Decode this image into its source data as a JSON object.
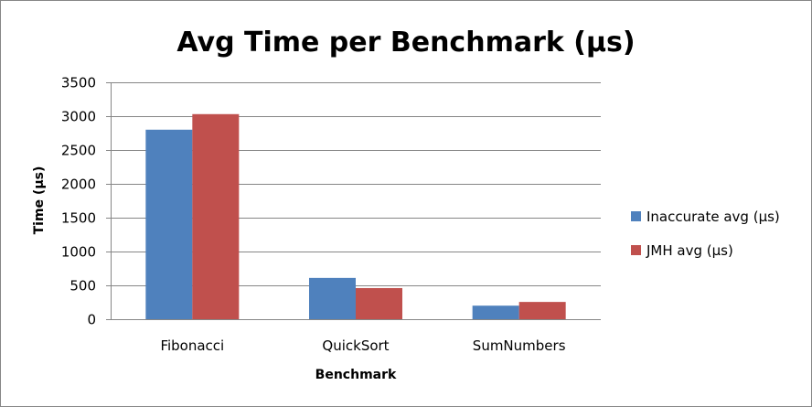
{
  "chart_data": {
    "type": "bar",
    "title": "Avg Time per Benchmark (µs)",
    "xlabel": "Benchmark",
    "ylabel": "Time (µs)",
    "categories": [
      "Fibonacci",
      "QuickSort",
      "SumNumbers"
    ],
    "series": [
      {
        "name": "Inaccurate avg (µs)",
        "color": "#4F81BD",
        "values": [
          2800,
          610,
          200
        ]
      },
      {
        "name": "JMH avg (µs)",
        "color": "#C0504D",
        "values": [
          3030,
          460,
          255
        ]
      }
    ],
    "ylim": [
      0,
      3500
    ],
    "yticks": [
      "0",
      "500",
      "1000",
      "1500",
      "2000",
      "2500",
      "3000",
      "3500"
    ],
    "grid": true,
    "legend_position": "right"
  }
}
